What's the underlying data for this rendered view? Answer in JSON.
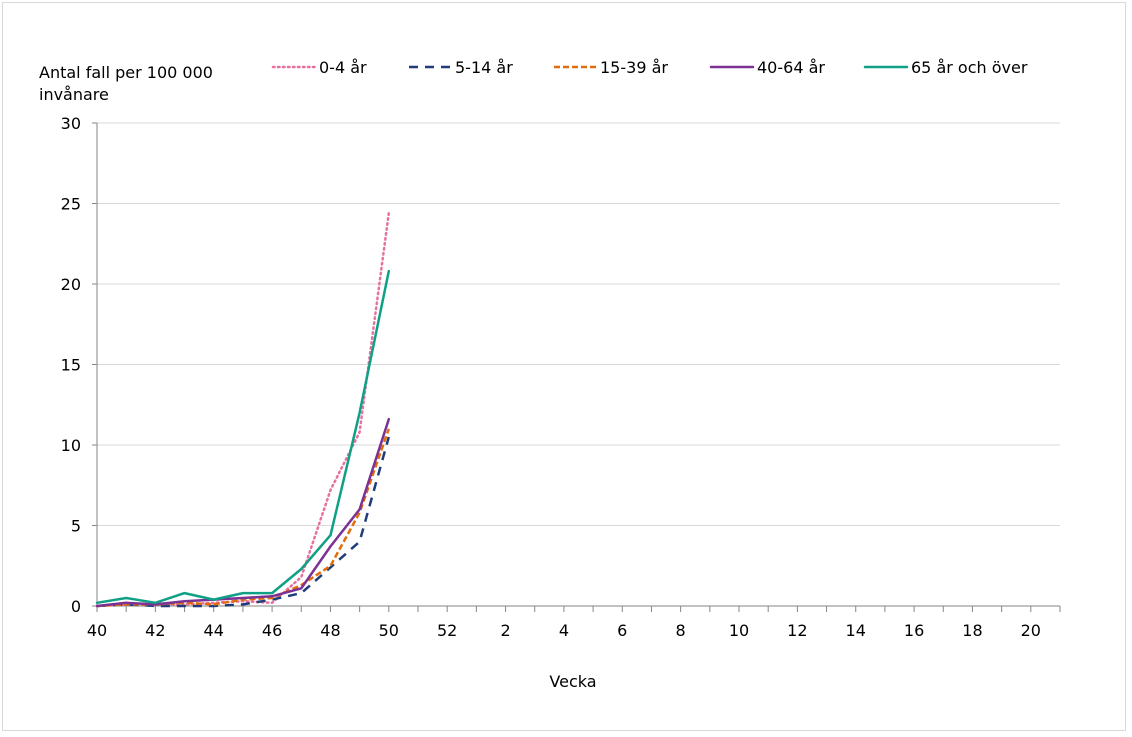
{
  "chart_data": {
    "type": "line",
    "ylabel_lines": [
      "Antal fall per 100 000",
      "invånare"
    ],
    "xlabel": "Vecka",
    "ylim": [
      0,
      30
    ],
    "yticks": [
      0,
      5,
      10,
      15,
      20,
      25,
      30
    ],
    "grid": "horizontal",
    "legend_position": "top",
    "weeks": [
      "40",
      "41",
      "42",
      "43",
      "44",
      "45",
      "46",
      "47",
      "48",
      "49",
      "50",
      "51",
      "52",
      "53",
      "1",
      "2",
      "3",
      "4",
      "5",
      "6",
      "7",
      "8",
      "9",
      "10",
      "11",
      "12",
      "13",
      "14",
      "15",
      "16",
      "17",
      "18",
      "19",
      "20"
    ],
    "xtick_labels": [
      "40",
      "42",
      "44",
      "46",
      "48",
      "50",
      "52",
      "2",
      "4",
      "6",
      "8",
      "10",
      "12",
      "14",
      "16",
      "18",
      "20"
    ],
    "series": [
      {
        "name": "0-4 år",
        "color": "#e6709f",
        "dash": "dotted",
        "values": [
          0.0,
          0.1,
          0.1,
          0.1,
          0.2,
          0.3,
          0.2,
          1.8,
          7.2,
          10.8,
          24.4
        ]
      },
      {
        "name": "5-14 år",
        "color": "#1f3d7a",
        "dash": "dashed",
        "values": [
          0.0,
          0.1,
          0.0,
          0.0,
          0.0,
          0.1,
          0.4,
          0.8,
          2.4,
          4.0,
          10.5
        ]
      },
      {
        "name": "15-39 år",
        "color": "#e36c0a",
        "dash": "shortdash",
        "values": [
          0.0,
          0.1,
          0.1,
          0.2,
          0.1,
          0.4,
          0.5,
          1.3,
          2.5,
          5.8,
          11.0
        ]
      },
      {
        "name": "40-64 år",
        "color": "#7b3294",
        "dash": "solid",
        "values": [
          0.0,
          0.2,
          0.1,
          0.3,
          0.4,
          0.5,
          0.6,
          1.1,
          3.7,
          6.0,
          11.6
        ]
      },
      {
        "name": "65 år och över",
        "color": "#10a085",
        "dash": "solid",
        "values": [
          0.2,
          0.5,
          0.2,
          0.8,
          0.4,
          0.8,
          0.8,
          2.3,
          4.4,
          12.0,
          20.8
        ]
      }
    ]
  }
}
